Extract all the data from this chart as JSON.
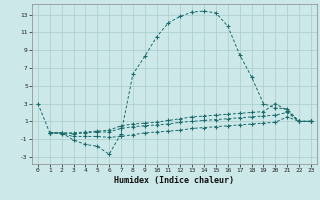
{
  "bg_color": "#cde8e8",
  "grid_color": "#aacccc",
  "line_color": "#1a6b6b",
  "xlabel": "Humidex (Indice chaleur)",
  "xlim": [
    -0.5,
    23.5
  ],
  "ylim": [
    -3.8,
    14.2
  ],
  "xticks": [
    0,
    1,
    2,
    3,
    4,
    5,
    6,
    7,
    8,
    9,
    10,
    11,
    12,
    13,
    14,
    15,
    16,
    17,
    18,
    19,
    20,
    21,
    22,
    23
  ],
  "yticks": [
    -3,
    -1,
    1,
    3,
    5,
    7,
    9,
    11,
    13
  ],
  "curve1_x": [
    0,
    1,
    2,
    3,
    4,
    5,
    6,
    7,
    8,
    9,
    10,
    11,
    12,
    13,
    14,
    15,
    16,
    17,
    18,
    19,
    20,
    21,
    22,
    23
  ],
  "curve1_y": [
    3.0,
    -0.3,
    -0.3,
    -1.1,
    -1.6,
    -1.8,
    -2.7,
    -0.4,
    6.3,
    8.3,
    10.5,
    12.1,
    12.8,
    13.3,
    13.4,
    13.2,
    11.7,
    8.5,
    6.0,
    3.0,
    2.5,
    2.4,
    1.0,
    1.0
  ],
  "curve2_x": [
    1,
    2,
    3,
    4,
    5,
    6,
    7,
    8,
    9,
    10,
    11,
    12,
    13,
    14,
    15,
    16,
    17,
    18,
    19,
    20,
    21,
    22,
    23
  ],
  "curve2_y": [
    -0.3,
    -0.3,
    -0.3,
    -0.2,
    -0.1,
    0.0,
    0.5,
    0.7,
    0.8,
    0.9,
    1.1,
    1.3,
    1.5,
    1.6,
    1.7,
    1.8,
    1.9,
    2.0,
    2.1,
    3.0,
    2.2,
    1.0,
    1.0
  ],
  "curve3_x": [
    1,
    2,
    3,
    4,
    5,
    6,
    7,
    8,
    9,
    10,
    11,
    12,
    13,
    14,
    15,
    16,
    17,
    18,
    19,
    20,
    21,
    22,
    23
  ],
  "curve3_y": [
    -0.3,
    -0.3,
    -0.4,
    -0.3,
    -0.2,
    -0.2,
    0.2,
    0.4,
    0.5,
    0.6,
    0.7,
    0.9,
    1.0,
    1.1,
    1.2,
    1.3,
    1.4,
    1.5,
    1.6,
    1.7,
    2.0,
    1.0,
    1.0
  ],
  "curve4_x": [
    1,
    2,
    3,
    4,
    5,
    6,
    7,
    8,
    9,
    10,
    11,
    12,
    13,
    14,
    15,
    16,
    17,
    18,
    19,
    20,
    21,
    22,
    23
  ],
  "curve4_y": [
    -0.3,
    -0.4,
    -0.7,
    -0.7,
    -0.7,
    -0.8,
    -0.7,
    -0.5,
    -0.3,
    -0.2,
    -0.1,
    0.0,
    0.2,
    0.3,
    0.4,
    0.5,
    0.6,
    0.7,
    0.8,
    0.9,
    1.5,
    1.0,
    1.0
  ]
}
